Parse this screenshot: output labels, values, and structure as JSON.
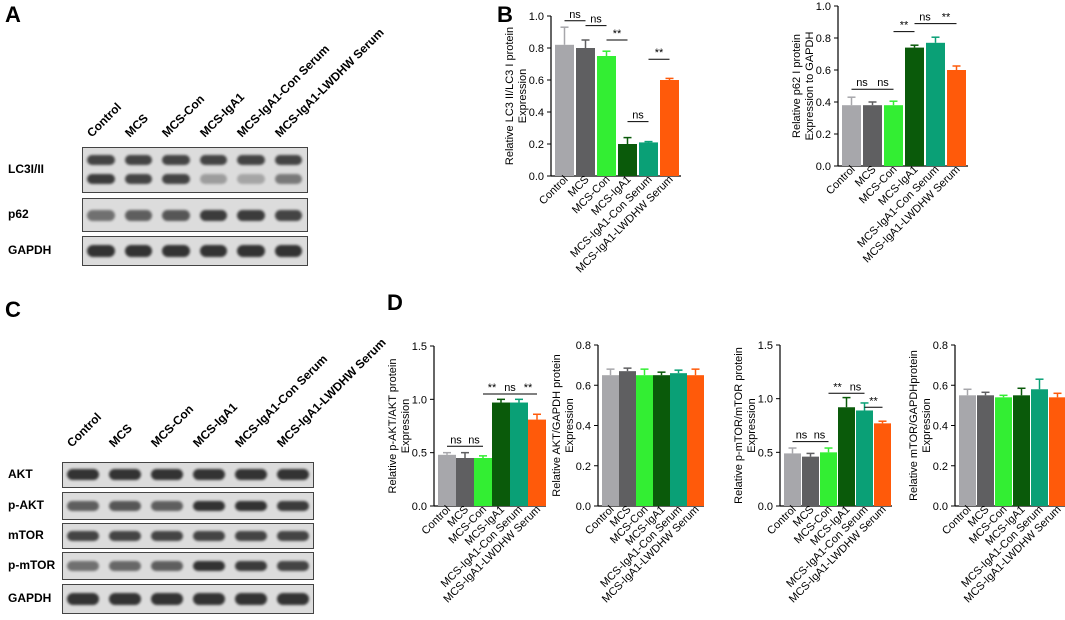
{
  "panels": {
    "A": "A",
    "B": "B",
    "C": "C",
    "D": "D"
  },
  "blotA": {
    "lanes": [
      "Control",
      "MCS",
      "MCS-Con",
      "MCS-IgA1",
      "MCS-IgA1-Con Serum",
      "MCS-IgA1-LWDHW Serum"
    ],
    "rows": [
      "LC3I/II",
      "p62",
      "GAPDH"
    ]
  },
  "blotC": {
    "lanes": [
      "Control",
      "MCS",
      "MCS-Con",
      "MCS-IgA1",
      "MCS-IgA1-Con Serum",
      "MCS-IgA1-LWDHW Serum"
    ],
    "rows": [
      "AKT",
      "p-AKT",
      "mTOR",
      "p-mTOR",
      "GAPDH"
    ]
  },
  "colors": [
    "#a7a7ab",
    "#5f5f61",
    "#33ee33",
    "#0a5a0a",
    "#0aa076",
    "#ff5a0a"
  ],
  "chart_data": [
    {
      "type": "bar",
      "ylabel": "Relative LC3 II/LC3 I protein\nExpression",
      "categories": [
        "Control",
        "MCS",
        "MCS-Con",
        "MCS-IgA1",
        "MCS-IgA1-Con Serum",
        "MCS-IgA1-LWDHW Serum"
      ],
      "values": [
        0.82,
        0.8,
        0.75,
        0.2,
        0.21,
        0.6
      ],
      "errors": [
        0.11,
        0.05,
        0.03,
        0.04,
        0.005,
        0.01
      ],
      "ylim": [
        0,
        1.0
      ],
      "yticks": [
        "0.0",
        "0.2",
        "0.4",
        "0.6",
        "0.8",
        "1.0"
      ],
      "annotations": [
        {
          "label": "ns",
          "from": 0,
          "to": 1,
          "y": 0.97
        },
        {
          "label": "ns",
          "from": 1,
          "to": 2,
          "y": 0.94
        },
        {
          "label": "**",
          "from": 2,
          "to": 3,
          "y": 0.85
        },
        {
          "label": "ns",
          "from": 3,
          "to": 4,
          "y": 0.34
        },
        {
          "label": "**",
          "from": 4,
          "to": 5,
          "y": 0.73
        }
      ]
    },
    {
      "type": "bar",
      "ylabel": "Relative p62 I protein\nExpression to GAPDH",
      "categories": [
        "Control",
        "MCS",
        "MCS-Con",
        "MCS-IgA1",
        "MCS-IgA1-Con Serum",
        "MCS-IgA1-LWDHW Serum"
      ],
      "values": [
        0.38,
        0.38,
        0.38,
        0.74,
        0.77,
        0.6
      ],
      "errors": [
        0.05,
        0.02,
        0.025,
        0.015,
        0.035,
        0.025
      ],
      "ylim": [
        0,
        1.0
      ],
      "yticks": [
        "0.0",
        "0.2",
        "0.4",
        "0.6",
        "0.8",
        "1.0"
      ],
      "annotations": [
        {
          "label": "ns",
          "from": 0,
          "to": 1,
          "y": 0.48
        },
        {
          "label": "ns",
          "from": 1,
          "to": 2,
          "y": 0.48
        },
        {
          "label": "**",
          "from": 2,
          "to": 3,
          "y": 0.84
        },
        {
          "label": "ns",
          "from": 3,
          "to": 4,
          "y": 0.89
        },
        {
          "label": "**",
          "from": 4,
          "to": 5,
          "y": 0.89
        }
      ]
    },
    {
      "type": "bar",
      "ylabel": "Relative p-AKT/AKT  protein\nExpression",
      "categories": [
        "Control",
        "MCS",
        "MCS-Con",
        "MCS-IgA1",
        "MCS-IgA1-Con Serum",
        "MCS-IgA1-LWDHW Serum"
      ],
      "values": [
        0.48,
        0.45,
        0.45,
        0.97,
        0.97,
        0.81
      ],
      "errors": [
        0.02,
        0.05,
        0.02,
        0.03,
        0.03,
        0.05
      ],
      "ylim": [
        0,
        1.5
      ],
      "yticks": [
        "0.0",
        "0.5",
        "1.0",
        "1.5"
      ],
      "annotations": [
        {
          "label": "ns",
          "from": 0,
          "to": 1,
          "y": 0.56
        },
        {
          "label": "ns",
          "from": 1,
          "to": 2,
          "y": 0.56
        },
        {
          "label": "**",
          "from": 2,
          "to": 3,
          "y": 1.05
        },
        {
          "label": "ns",
          "from": 3,
          "to": 4,
          "y": 1.05
        },
        {
          "label": "**",
          "from": 4,
          "to": 5,
          "y": 1.05
        }
      ]
    },
    {
      "type": "bar",
      "ylabel": "Relative AKT/GAPDH protein\nExpression",
      "categories": [
        "Control",
        "MCS",
        "MCS-Con",
        "MCS-IgA1",
        "MCS-IgA1-Con Serum",
        "MCS-IgA1-LWDHW Serum"
      ],
      "values": [
        0.65,
        0.67,
        0.65,
        0.65,
        0.66,
        0.65
      ],
      "errors": [
        0.03,
        0.015,
        0.03,
        0.015,
        0.015,
        0.03
      ],
      "ylim": [
        0,
        0.8
      ],
      "yticks": [
        "0.0",
        "0.2",
        "0.4",
        "0.6",
        "0.8"
      ],
      "annotations": []
    },
    {
      "type": "bar",
      "ylabel": "Relative p-mTOR/mTOR protein\nExpression",
      "categories": [
        "Control",
        "MCS",
        "MCS-Con",
        "MCS-IgA1",
        "MCS-IgA1-Con Serum",
        "MCS-IgA1-LWDHW Serum"
      ],
      "values": [
        0.49,
        0.46,
        0.5,
        0.92,
        0.89,
        0.77
      ],
      "errors": [
        0.05,
        0.03,
        0.04,
        0.09,
        0.07,
        0.02
      ],
      "ylim": [
        0,
        1.5
      ],
      "yticks": [
        "0.0",
        "0.5",
        "1.0",
        "1.5"
      ],
      "annotations": [
        {
          "label": "ns",
          "from": 0,
          "to": 1,
          "y": 0.6
        },
        {
          "label": "ns",
          "from": 1,
          "to": 2,
          "y": 0.6
        },
        {
          "label": "**",
          "from": 2,
          "to": 3,
          "y": 1.05
        },
        {
          "label": "ns",
          "from": 3,
          "to": 4,
          "y": 1.05
        },
        {
          "label": "**",
          "from": 4,
          "to": 5,
          "y": 0.92
        }
      ]
    },
    {
      "type": "bar",
      "ylabel": "Relative mTOR/GAPDHprotein\nExpression",
      "categories": [
        "Control",
        "MCS",
        "MCS-Con",
        "MCS-IgA1",
        "MCS-IgA1-Con Serum",
        "MCS-IgA1-LWDHW Serum"
      ],
      "values": [
        0.55,
        0.55,
        0.54,
        0.55,
        0.58,
        0.54
      ],
      "errors": [
        0.03,
        0.015,
        0.01,
        0.035,
        0.05,
        0.02
      ],
      "ylim": [
        0,
        0.8
      ],
      "yticks": [
        "0.0",
        "0.2",
        "0.4",
        "0.6",
        "0.8"
      ],
      "annotations": []
    }
  ]
}
